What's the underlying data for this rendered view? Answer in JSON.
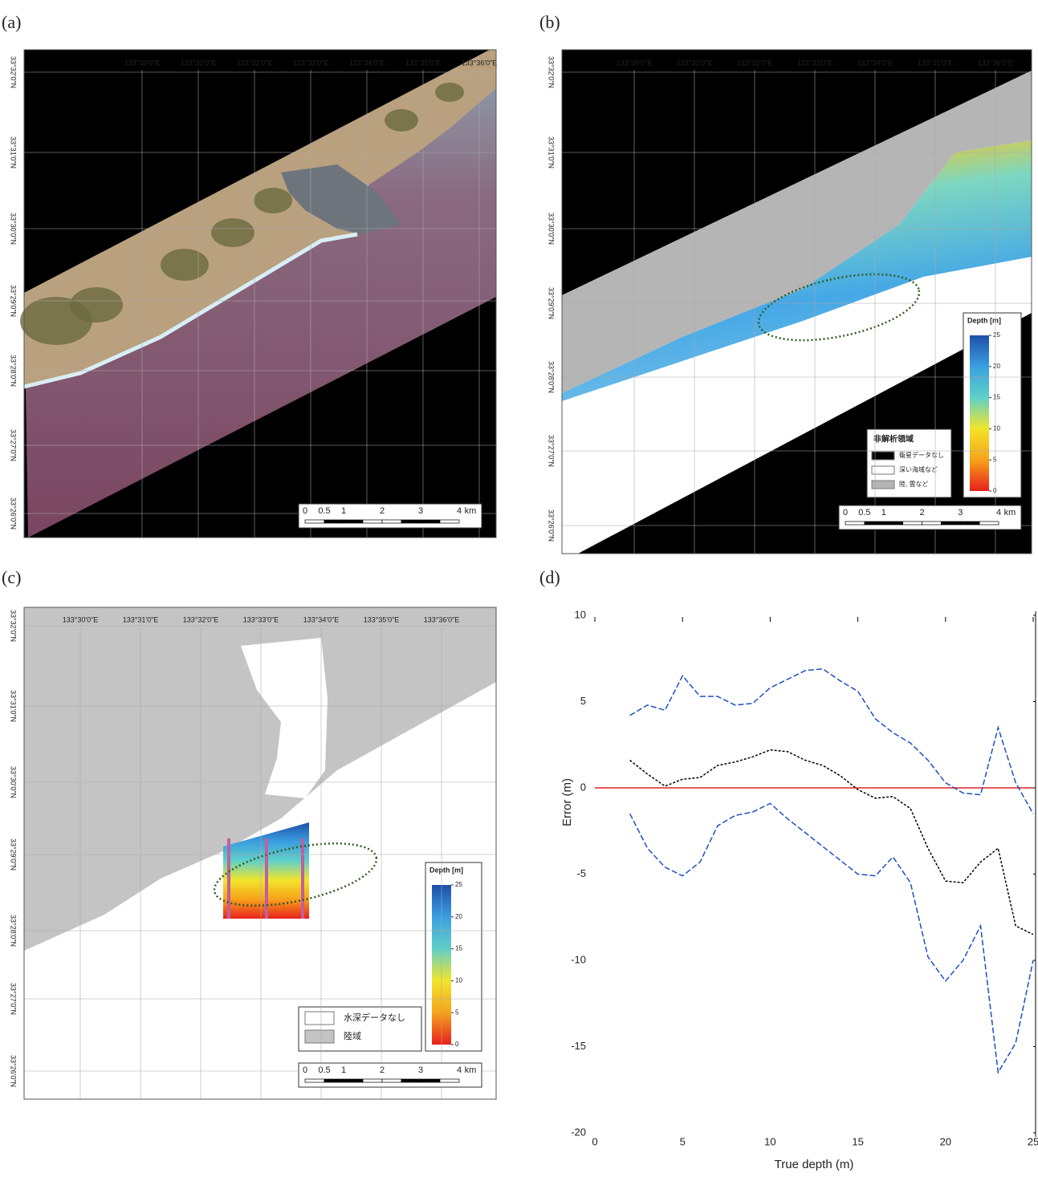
{
  "maps": [
    {
      "label": "(a)",
      "lon_labels": [
        "133°30'0\"E",
        "133°31'0\"E",
        "133°32'0\"E",
        "133°33'0\"E",
        "133°34'0\"E",
        "133°35'0\"E",
        "133°36'0\"E"
      ],
      "lat_labels": [
        "33°32'0\"N",
        "33°31'0\"N",
        "33°30'0\"N",
        "33°29'0\"N",
        "33°28'0\"N",
        "33°27'0\"N",
        "33°26'0\"N"
      ],
      "scale_bar": [
        "0",
        "0.5",
        "1",
        "2",
        "3",
        "4",
        "km"
      ]
    },
    {
      "label": "(b)",
      "lon_labels": [
        "133°30'0\"E",
        "133°31'0\"E",
        "133°32'0\"E",
        "133°33'0\"E",
        "133°34'0\"E",
        "133°35'0\"E",
        "133°36'0\"E"
      ],
      "lat_labels": [
        "33°32'0\"N",
        "33°31'0\"N",
        "33°30'0\"N",
        "33°29'0\"N",
        "33°28'0\"N",
        "33°27'0\"N",
        "33°26'0\"N"
      ],
      "scale_bar": [
        "0",
        "0.5",
        "1",
        "2",
        "3",
        "4",
        "km"
      ],
      "depth_legend": {
        "title": "Depth [m]",
        "ticks": [
          25,
          20,
          15,
          10,
          5,
          0
        ]
      },
      "mask_legend": {
        "title": "非解析領域",
        "items": [
          "衛星データなし",
          "深い海域など",
          "陸, 雲など"
        ]
      }
    },
    {
      "label": "(c)",
      "lon_labels": [
        "133°30'0\"E",
        "133°31'0\"E",
        "133°32'0\"E",
        "133°33'0\"E",
        "133°34'0\"E",
        "133°35'0\"E",
        "133°36'0\"E"
      ],
      "lat_labels": [
        "33°32'0\"N",
        "33°31'0\"N",
        "33°30'0\"N",
        "33°29'0\"N",
        "33°28'0\"N",
        "33°27'0\"N",
        "33°26'0\"N"
      ],
      "scale_bar": [
        "0",
        "0.5",
        "1",
        "2",
        "3",
        "4",
        "km"
      ],
      "depth_legend": {
        "title": "Depth [m]",
        "ticks": [
          25,
          20,
          15,
          10,
          5,
          0
        ]
      },
      "legend": {
        "items": [
          "水深データなし",
          "陸域"
        ]
      }
    }
  ],
  "chart_data": {
    "label": "(d)",
    "type": "line",
    "xlabel": "True depth (m)",
    "ylabel": "Error (m)",
    "xlim": [
      0,
      25
    ],
    "ylim": [
      -20,
      10
    ],
    "xticks": [
      0,
      5,
      10,
      15,
      20,
      25
    ],
    "yticks": [
      10,
      5,
      0,
      -5,
      -10,
      -15,
      -20
    ],
    "x": [
      2,
      3,
      4,
      5,
      6,
      7,
      8,
      9,
      10,
      11,
      12,
      13,
      14,
      15,
      16,
      17,
      18,
      19,
      20,
      21,
      22,
      23,
      24,
      25
    ],
    "series": [
      {
        "color": "#1f4fbf",
        "values": [
          4.2,
          4.8,
          4.5,
          6.5,
          5.3,
          5.3,
          4.8,
          4.9,
          5.8,
          6.3,
          6.8,
          6.9,
          6.2,
          5.6,
          4.0,
          3.2,
          2.6,
          1.6,
          0.3,
          -0.3,
          -0.4,
          3.5,
          0.3,
          -1.5
        ]
      },
      {
        "color": "#000000",
        "values": [
          1.6,
          0.8,
          0.1,
          0.5,
          0.6,
          1.3,
          1.5,
          1.8,
          2.2,
          2.1,
          1.6,
          1.3,
          0.7,
          -0.1,
          -0.6,
          -0.5,
          -1.2,
          -3.5,
          -5.4,
          -5.5,
          -4.3,
          -3.5,
          -8,
          -8.5
        ]
      },
      {
        "color": "#1f4fbf",
        "values": [
          -1.5,
          -3.5,
          -4.6,
          -5.1,
          -4.3,
          -2.2,
          -1.6,
          -1.4,
          -0.9,
          -1.8,
          -2.6,
          -3.4,
          -4.2,
          -5.0,
          -5.1,
          -4.0,
          -5.5,
          -9.8,
          -11.2,
          -10.0,
          -8.0,
          -16.5,
          -14.8,
          -10.0
        ]
      }
    ],
    "reference_line": {
      "value": 0,
      "color": "#e02020"
    }
  }
}
